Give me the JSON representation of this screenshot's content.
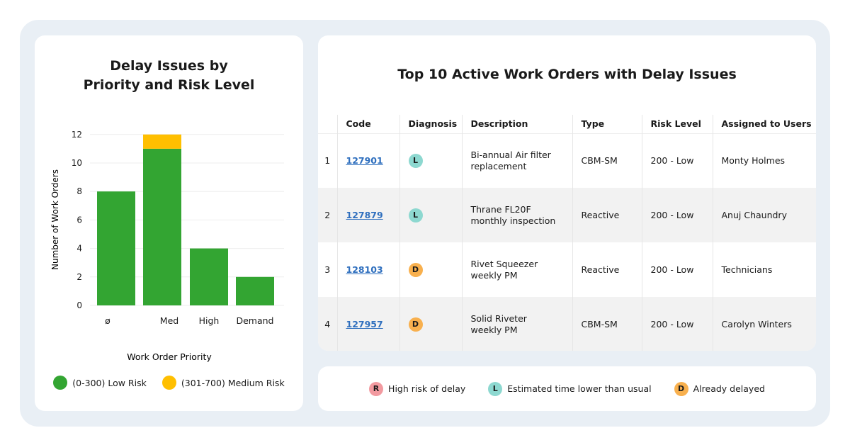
{
  "chart_data": {
    "type": "bar",
    "title": "Delay Issues by Priority and Risk Level",
    "title_lines": [
      "Delay Issues by",
      "Priority and Risk Level"
    ],
    "xlabel": "Work Order Priority",
    "ylabel": "Number of Work Orders",
    "categories": [
      "ø",
      "Med",
      "High",
      "Demand"
    ],
    "ylim": [
      0,
      12
    ],
    "yticks": [
      0,
      2,
      4,
      6,
      8,
      10,
      12
    ],
    "stacked": true,
    "series": [
      {
        "name": "(0-300) Low Risk",
        "color": "#33a532",
        "values": [
          8,
          11,
          4,
          2
        ]
      },
      {
        "name": "(301-700) Medium Risk",
        "color": "#ffbf00",
        "values": [
          0,
          1,
          0,
          0
        ]
      }
    ],
    "legend_position": "bottom"
  },
  "table": {
    "title": "Top 10 Active Work Orders with Delay Issues",
    "columns": [
      "",
      "Code",
      "Diagnosis",
      "Description",
      "Type",
      "Risk Level",
      "Assigned to Users"
    ],
    "rows": [
      {
        "n": "1",
        "code": "127901",
        "diag": "L",
        "desc": "Bi-annual Air filter replacement",
        "type": "CBM-SM",
        "risk": "200 - Low",
        "user": "Monty Holmes"
      },
      {
        "n": "2",
        "code": "127879",
        "diag": "L",
        "desc": "Thrane FL20F monthly inspection",
        "type": "Reactive",
        "risk": "200 - Low",
        "user": "Anuj Chaundry"
      },
      {
        "n": "3",
        "code": "128103",
        "diag": "D",
        "desc": "Rivet Squeezer weekly PM",
        "type": "Reactive",
        "risk": "200 - Low",
        "user": "Technicians"
      },
      {
        "n": "4",
        "code": "127957",
        "diag": "D",
        "desc": "Solid Riveter weekly PM",
        "type": "CBM-SM",
        "risk": "200 - Low",
        "user": "Carolyn Winters"
      }
    ]
  },
  "diagnosis_legend": [
    {
      "letter": "R",
      "label": "High risk of delay",
      "color": "#f29aa0"
    },
    {
      "letter": "L",
      "label": "Estimated time lower than usual",
      "color": "#8dd8d0"
    },
    {
      "letter": "D",
      "label": "Already delayed",
      "color": "#f8b04e"
    }
  ]
}
